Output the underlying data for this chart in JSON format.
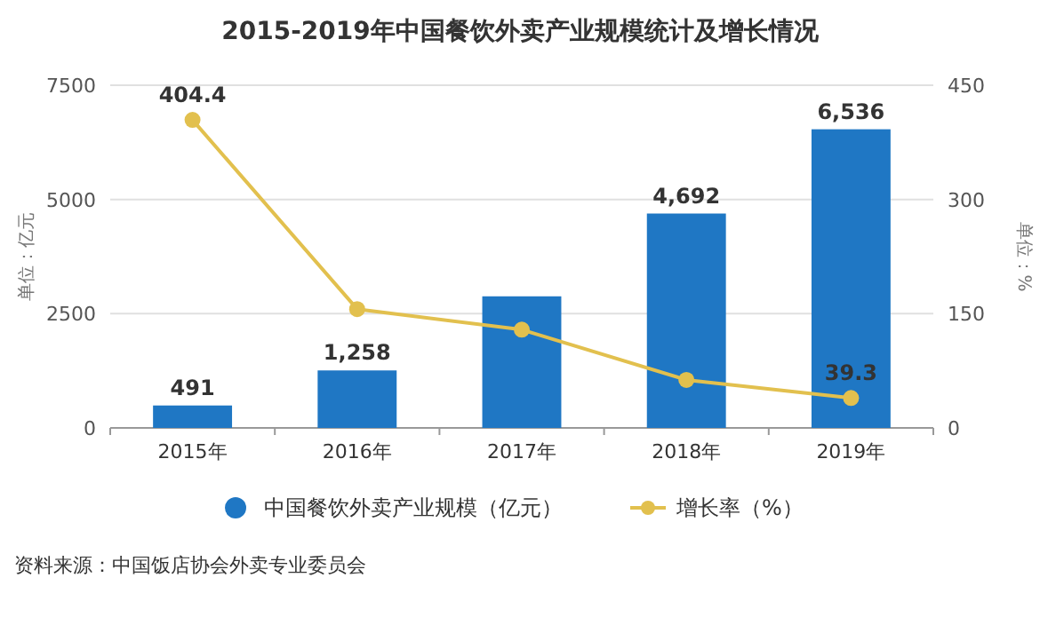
{
  "chart_data": {
    "type": "bar",
    "title": "2015-2019年中国餐饮外卖产业规模统计及增长情况",
    "categories": [
      "2015年",
      "2016年",
      "2017年",
      "2018年",
      "2019年"
    ],
    "series": [
      {
        "name": "中国餐饮外卖产业规模（亿元）",
        "color": "#1f77c4",
        "values": [
          491,
          1258,
          2880,
          4692,
          6536
        ],
        "value_labels": [
          "491",
          "1,258",
          null,
          "4,692",
          "6,536"
        ]
      },
      {
        "name": "增长率（%）",
        "type": "line",
        "axis": "y2",
        "color": "#e2c04e",
        "values": [
          404.4,
          156,
          129,
          63,
          39.3
        ],
        "value_labels": [
          "404.4",
          null,
          null,
          null,
          "39.3"
        ]
      }
    ],
    "ylabel": "单位：亿元",
    "y2label": "单位：%",
    "ylim": [
      0,
      7500
    ],
    "yticks": [
      0,
      2500,
      5000,
      7500
    ],
    "y2lim": [
      0,
      450
    ],
    "y2ticks": [
      0,
      150,
      300,
      450
    ],
    "grid": "y",
    "legend": "bottom",
    "marker": "circle",
    "line_style": "solid",
    "annotations": [
      "资料来源：中国饭店协会外卖专业委员会"
    ]
  }
}
